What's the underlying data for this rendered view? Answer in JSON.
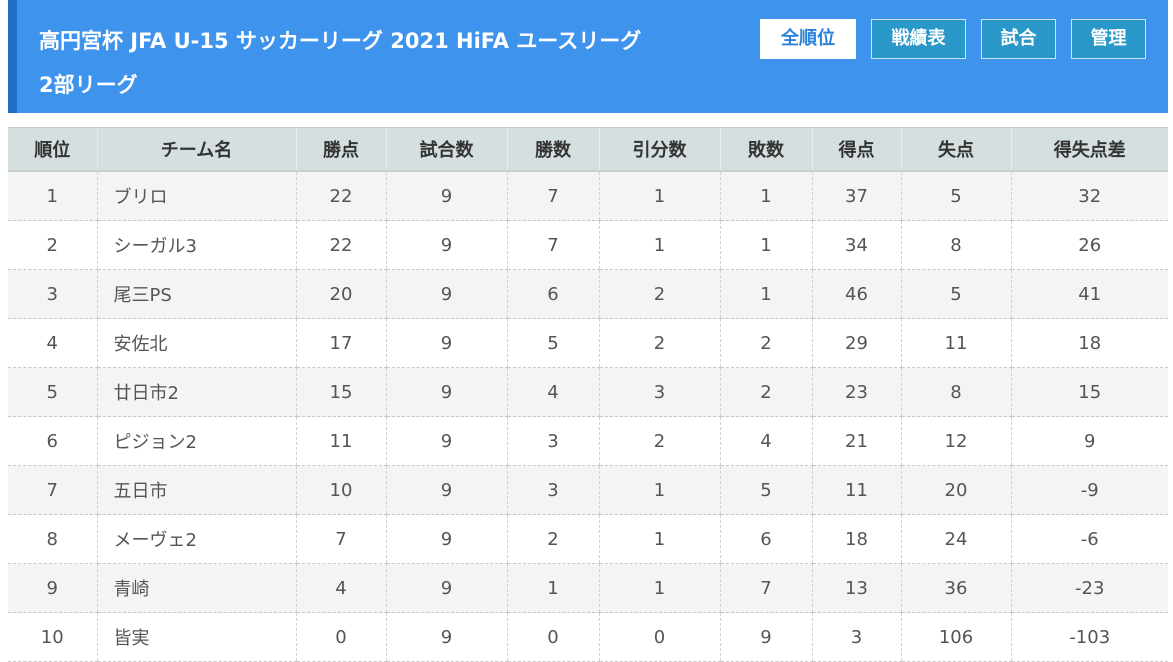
{
  "header": {
    "title_line1": "高円宮杯 JFA U-15 サッカーリーグ 2021 HiFA ユースリーグ",
    "title_line2": "2部リーグ"
  },
  "nav": [
    {
      "label": "全順位",
      "active": true
    },
    {
      "label": "戦績表",
      "active": false
    },
    {
      "label": "試合",
      "active": false
    },
    {
      "label": "管理",
      "active": false
    }
  ],
  "colors": {
    "header_bg": "#3e93ec",
    "nav_button": "#2a97c9",
    "table_header_bg": "#d5dfdf"
  },
  "table": {
    "headers": [
      "順位",
      "チーム名",
      "勝点",
      "試合数",
      "勝数",
      "引分数",
      "敗数",
      "得点",
      "失点",
      "得失点差"
    ],
    "rows": [
      [
        "1",
        "ブリロ",
        "22",
        "9",
        "7",
        "1",
        "1",
        "37",
        "5",
        "32"
      ],
      [
        "2",
        "シーガル3",
        "22",
        "9",
        "7",
        "1",
        "1",
        "34",
        "8",
        "26"
      ],
      [
        "3",
        "尾三PS",
        "20",
        "9",
        "6",
        "2",
        "1",
        "46",
        "5",
        "41"
      ],
      [
        "4",
        "安佐北",
        "17",
        "9",
        "5",
        "2",
        "2",
        "29",
        "11",
        "18"
      ],
      [
        "5",
        "廿日市2",
        "15",
        "9",
        "4",
        "3",
        "2",
        "23",
        "8",
        "15"
      ],
      [
        "6",
        "ピジョン2",
        "11",
        "9",
        "3",
        "2",
        "4",
        "21",
        "12",
        "9"
      ],
      [
        "7",
        "五日市",
        "10",
        "9",
        "3",
        "1",
        "5",
        "11",
        "20",
        "-9"
      ],
      [
        "8",
        "メーヴェ2",
        "7",
        "9",
        "2",
        "1",
        "6",
        "18",
        "24",
        "-6"
      ],
      [
        "9",
        "青崎",
        "4",
        "9",
        "1",
        "1",
        "7",
        "13",
        "36",
        "-23"
      ],
      [
        "10",
        "皆実",
        "0",
        "9",
        "0",
        "0",
        "9",
        "3",
        "106",
        "-103"
      ]
    ]
  }
}
